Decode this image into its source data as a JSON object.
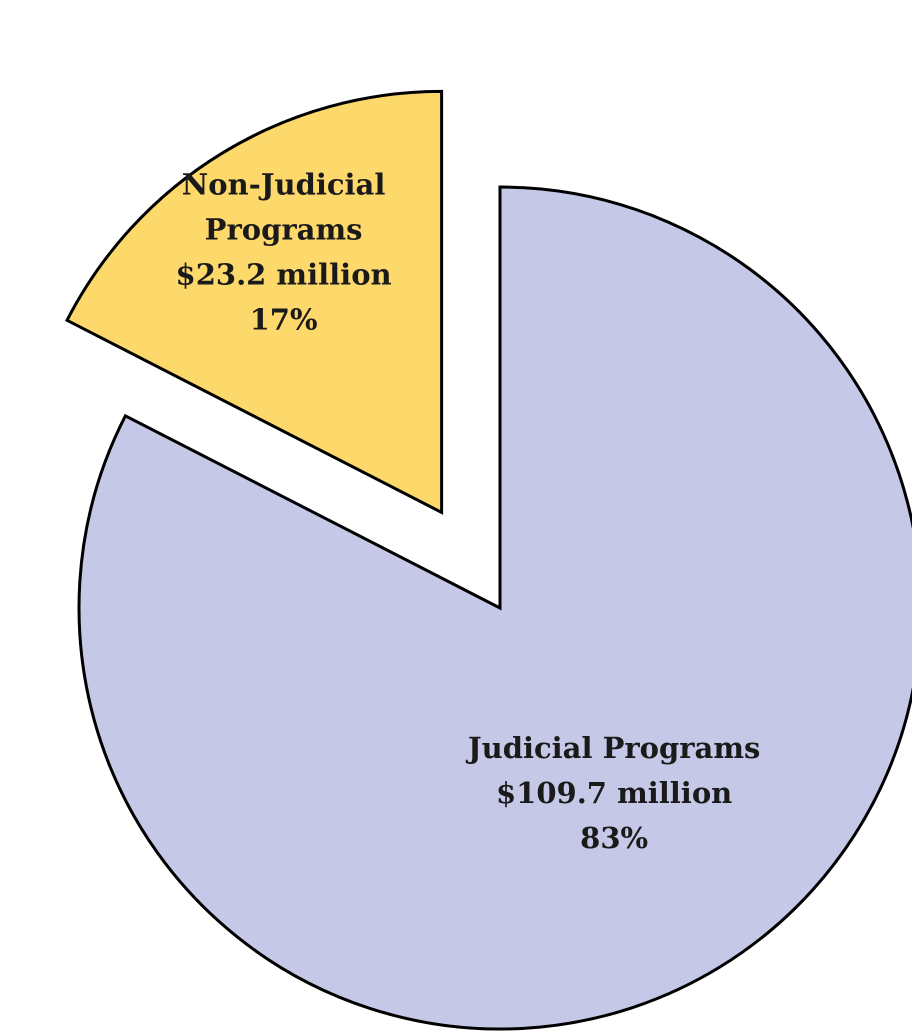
{
  "chart_data": {
    "type": "pie",
    "unit": "million",
    "slices": [
      {
        "label_lines": [
          "Judicial Programs",
          "$109.7 million",
          "83%"
        ],
        "value": 109.7,
        "percent": 83,
        "color": "#c5c8e6"
      },
      {
        "label_lines": [
          "Non-Judicial",
          "Programs",
          "$23.2 million",
          "17%"
        ],
        "value": 23.2,
        "percent": 17,
        "color": "#fdd86b"
      }
    ],
    "exploded": true
  }
}
